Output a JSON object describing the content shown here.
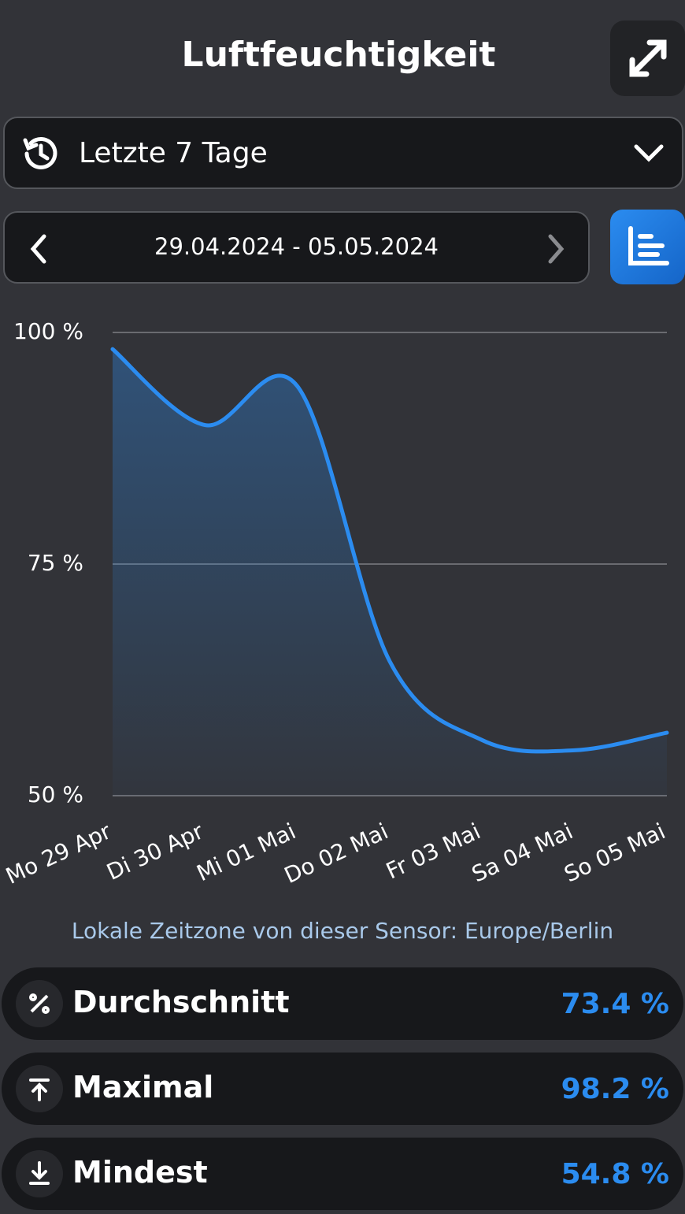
{
  "header": {
    "title": "Luftfeuchtigkeit"
  },
  "period_select": {
    "label": "Letzte 7 Tage"
  },
  "date_range": {
    "label": "29.04.2024 - 05.05.2024"
  },
  "chart_data": {
    "type": "area",
    "categories": [
      "Mo 29 Apr",
      "Di 30 Apr",
      "Mi 01 Mai",
      "Do 02 Mai",
      "Fr 03 Mai",
      "Sa 04 Mai",
      "So 05 Mai"
    ],
    "values": [
      98.2,
      90,
      94.2,
      64.5,
      56,
      54.9,
      56.8
    ],
    "color": "#2b8cf0",
    "ylim": [
      50,
      100
    ],
    "yticks": [
      {
        "value": 50,
        "label": "50 %"
      },
      {
        "value": 75,
        "label": "75 %"
      },
      {
        "value": 100,
        "label": "100 %"
      }
    ],
    "grid": true
  },
  "timezone_note": "Lokale Zeitzone von dieser Sensor: Europe/Berlin",
  "stats": [
    {
      "label": "Durchschnitt",
      "value": "73.4 %"
    },
    {
      "label": "Maximal",
      "value": "98.2 %"
    },
    {
      "label": "Mindest",
      "value": "54.8 %"
    }
  ]
}
